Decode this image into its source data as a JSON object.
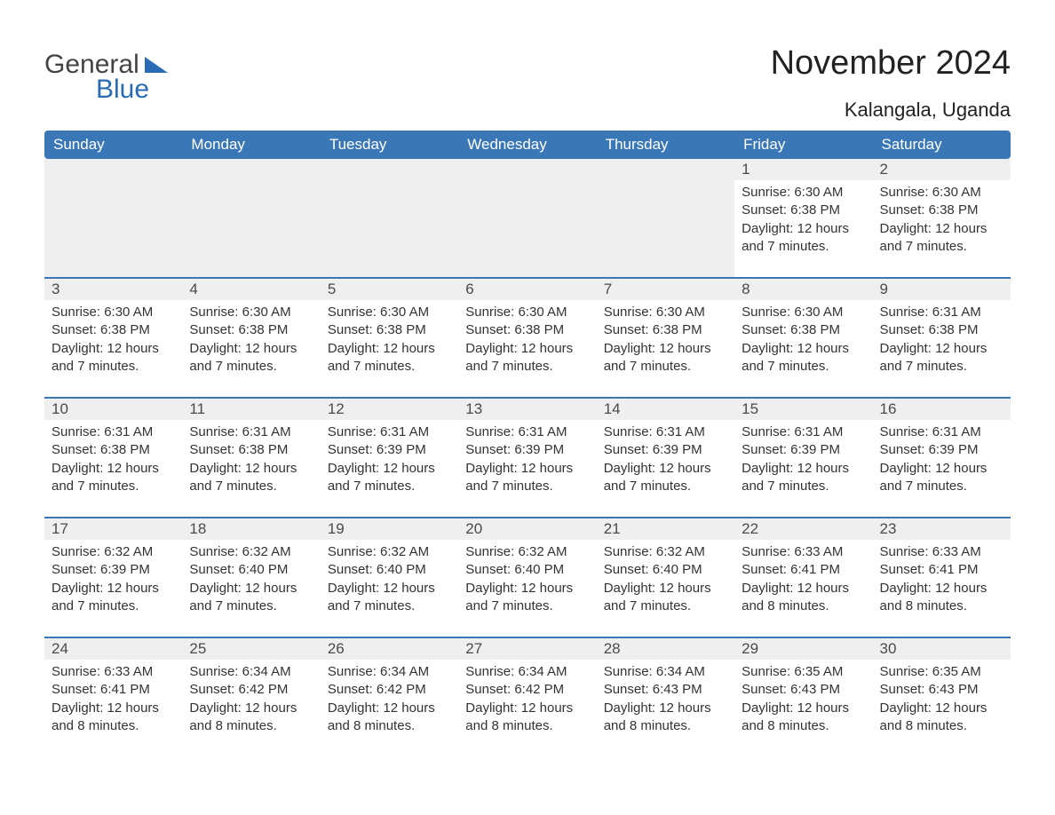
{
  "logo": {
    "text1": "General",
    "text2": "Blue"
  },
  "title": "November 2024",
  "subtitle": "Kalangala, Uganda",
  "colors": {
    "header_bg": "#3a77b7",
    "header_text": "#ffffff",
    "daynum_bg": "#efefef",
    "row_border": "#3a77b7",
    "body_text": "#333333",
    "logo_blue": "#2a6bb5",
    "logo_gray": "#444444",
    "page_bg": "#ffffff"
  },
  "day_headers": [
    "Sunday",
    "Monday",
    "Tuesday",
    "Wednesday",
    "Thursday",
    "Friday",
    "Saturday"
  ],
  "weeks": [
    [
      null,
      null,
      null,
      null,
      null,
      {
        "n": "1",
        "sunrise": "6:30 AM",
        "sunset": "6:38 PM",
        "daylight": "12 hours and 7 minutes."
      },
      {
        "n": "2",
        "sunrise": "6:30 AM",
        "sunset": "6:38 PM",
        "daylight": "12 hours and 7 minutes."
      }
    ],
    [
      {
        "n": "3",
        "sunrise": "6:30 AM",
        "sunset": "6:38 PM",
        "daylight": "12 hours and 7 minutes."
      },
      {
        "n": "4",
        "sunrise": "6:30 AM",
        "sunset": "6:38 PM",
        "daylight": "12 hours and 7 minutes."
      },
      {
        "n": "5",
        "sunrise": "6:30 AM",
        "sunset": "6:38 PM",
        "daylight": "12 hours and 7 minutes."
      },
      {
        "n": "6",
        "sunrise": "6:30 AM",
        "sunset": "6:38 PM",
        "daylight": "12 hours and 7 minutes."
      },
      {
        "n": "7",
        "sunrise": "6:30 AM",
        "sunset": "6:38 PM",
        "daylight": "12 hours and 7 minutes."
      },
      {
        "n": "8",
        "sunrise": "6:30 AM",
        "sunset": "6:38 PM",
        "daylight": "12 hours and 7 minutes."
      },
      {
        "n": "9",
        "sunrise": "6:31 AM",
        "sunset": "6:38 PM",
        "daylight": "12 hours and 7 minutes."
      }
    ],
    [
      {
        "n": "10",
        "sunrise": "6:31 AM",
        "sunset": "6:38 PM",
        "daylight": "12 hours and 7 minutes."
      },
      {
        "n": "11",
        "sunrise": "6:31 AM",
        "sunset": "6:38 PM",
        "daylight": "12 hours and 7 minutes."
      },
      {
        "n": "12",
        "sunrise": "6:31 AM",
        "sunset": "6:39 PM",
        "daylight": "12 hours and 7 minutes."
      },
      {
        "n": "13",
        "sunrise": "6:31 AM",
        "sunset": "6:39 PM",
        "daylight": "12 hours and 7 minutes."
      },
      {
        "n": "14",
        "sunrise": "6:31 AM",
        "sunset": "6:39 PM",
        "daylight": "12 hours and 7 minutes."
      },
      {
        "n": "15",
        "sunrise": "6:31 AM",
        "sunset": "6:39 PM",
        "daylight": "12 hours and 7 minutes."
      },
      {
        "n": "16",
        "sunrise": "6:31 AM",
        "sunset": "6:39 PM",
        "daylight": "12 hours and 7 minutes."
      }
    ],
    [
      {
        "n": "17",
        "sunrise": "6:32 AM",
        "sunset": "6:39 PM",
        "daylight": "12 hours and 7 minutes."
      },
      {
        "n": "18",
        "sunrise": "6:32 AM",
        "sunset": "6:40 PM",
        "daylight": "12 hours and 7 minutes."
      },
      {
        "n": "19",
        "sunrise": "6:32 AM",
        "sunset": "6:40 PM",
        "daylight": "12 hours and 7 minutes."
      },
      {
        "n": "20",
        "sunrise": "6:32 AM",
        "sunset": "6:40 PM",
        "daylight": "12 hours and 7 minutes."
      },
      {
        "n": "21",
        "sunrise": "6:32 AM",
        "sunset": "6:40 PM",
        "daylight": "12 hours and 7 minutes."
      },
      {
        "n": "22",
        "sunrise": "6:33 AM",
        "sunset": "6:41 PM",
        "daylight": "12 hours and 8 minutes."
      },
      {
        "n": "23",
        "sunrise": "6:33 AM",
        "sunset": "6:41 PM",
        "daylight": "12 hours and 8 minutes."
      }
    ],
    [
      {
        "n": "24",
        "sunrise": "6:33 AM",
        "sunset": "6:41 PM",
        "daylight": "12 hours and 8 minutes."
      },
      {
        "n": "25",
        "sunrise": "6:34 AM",
        "sunset": "6:42 PM",
        "daylight": "12 hours and 8 minutes."
      },
      {
        "n": "26",
        "sunrise": "6:34 AM",
        "sunset": "6:42 PM",
        "daylight": "12 hours and 8 minutes."
      },
      {
        "n": "27",
        "sunrise": "6:34 AM",
        "sunset": "6:42 PM",
        "daylight": "12 hours and 8 minutes."
      },
      {
        "n": "28",
        "sunrise": "6:34 AM",
        "sunset": "6:43 PM",
        "daylight": "12 hours and 8 minutes."
      },
      {
        "n": "29",
        "sunrise": "6:35 AM",
        "sunset": "6:43 PM",
        "daylight": "12 hours and 8 minutes."
      },
      {
        "n": "30",
        "sunrise": "6:35 AM",
        "sunset": "6:43 PM",
        "daylight": "12 hours and 8 minutes."
      }
    ]
  ],
  "labels": {
    "sunrise": "Sunrise:",
    "sunset": "Sunset:",
    "daylight": "Daylight:"
  }
}
